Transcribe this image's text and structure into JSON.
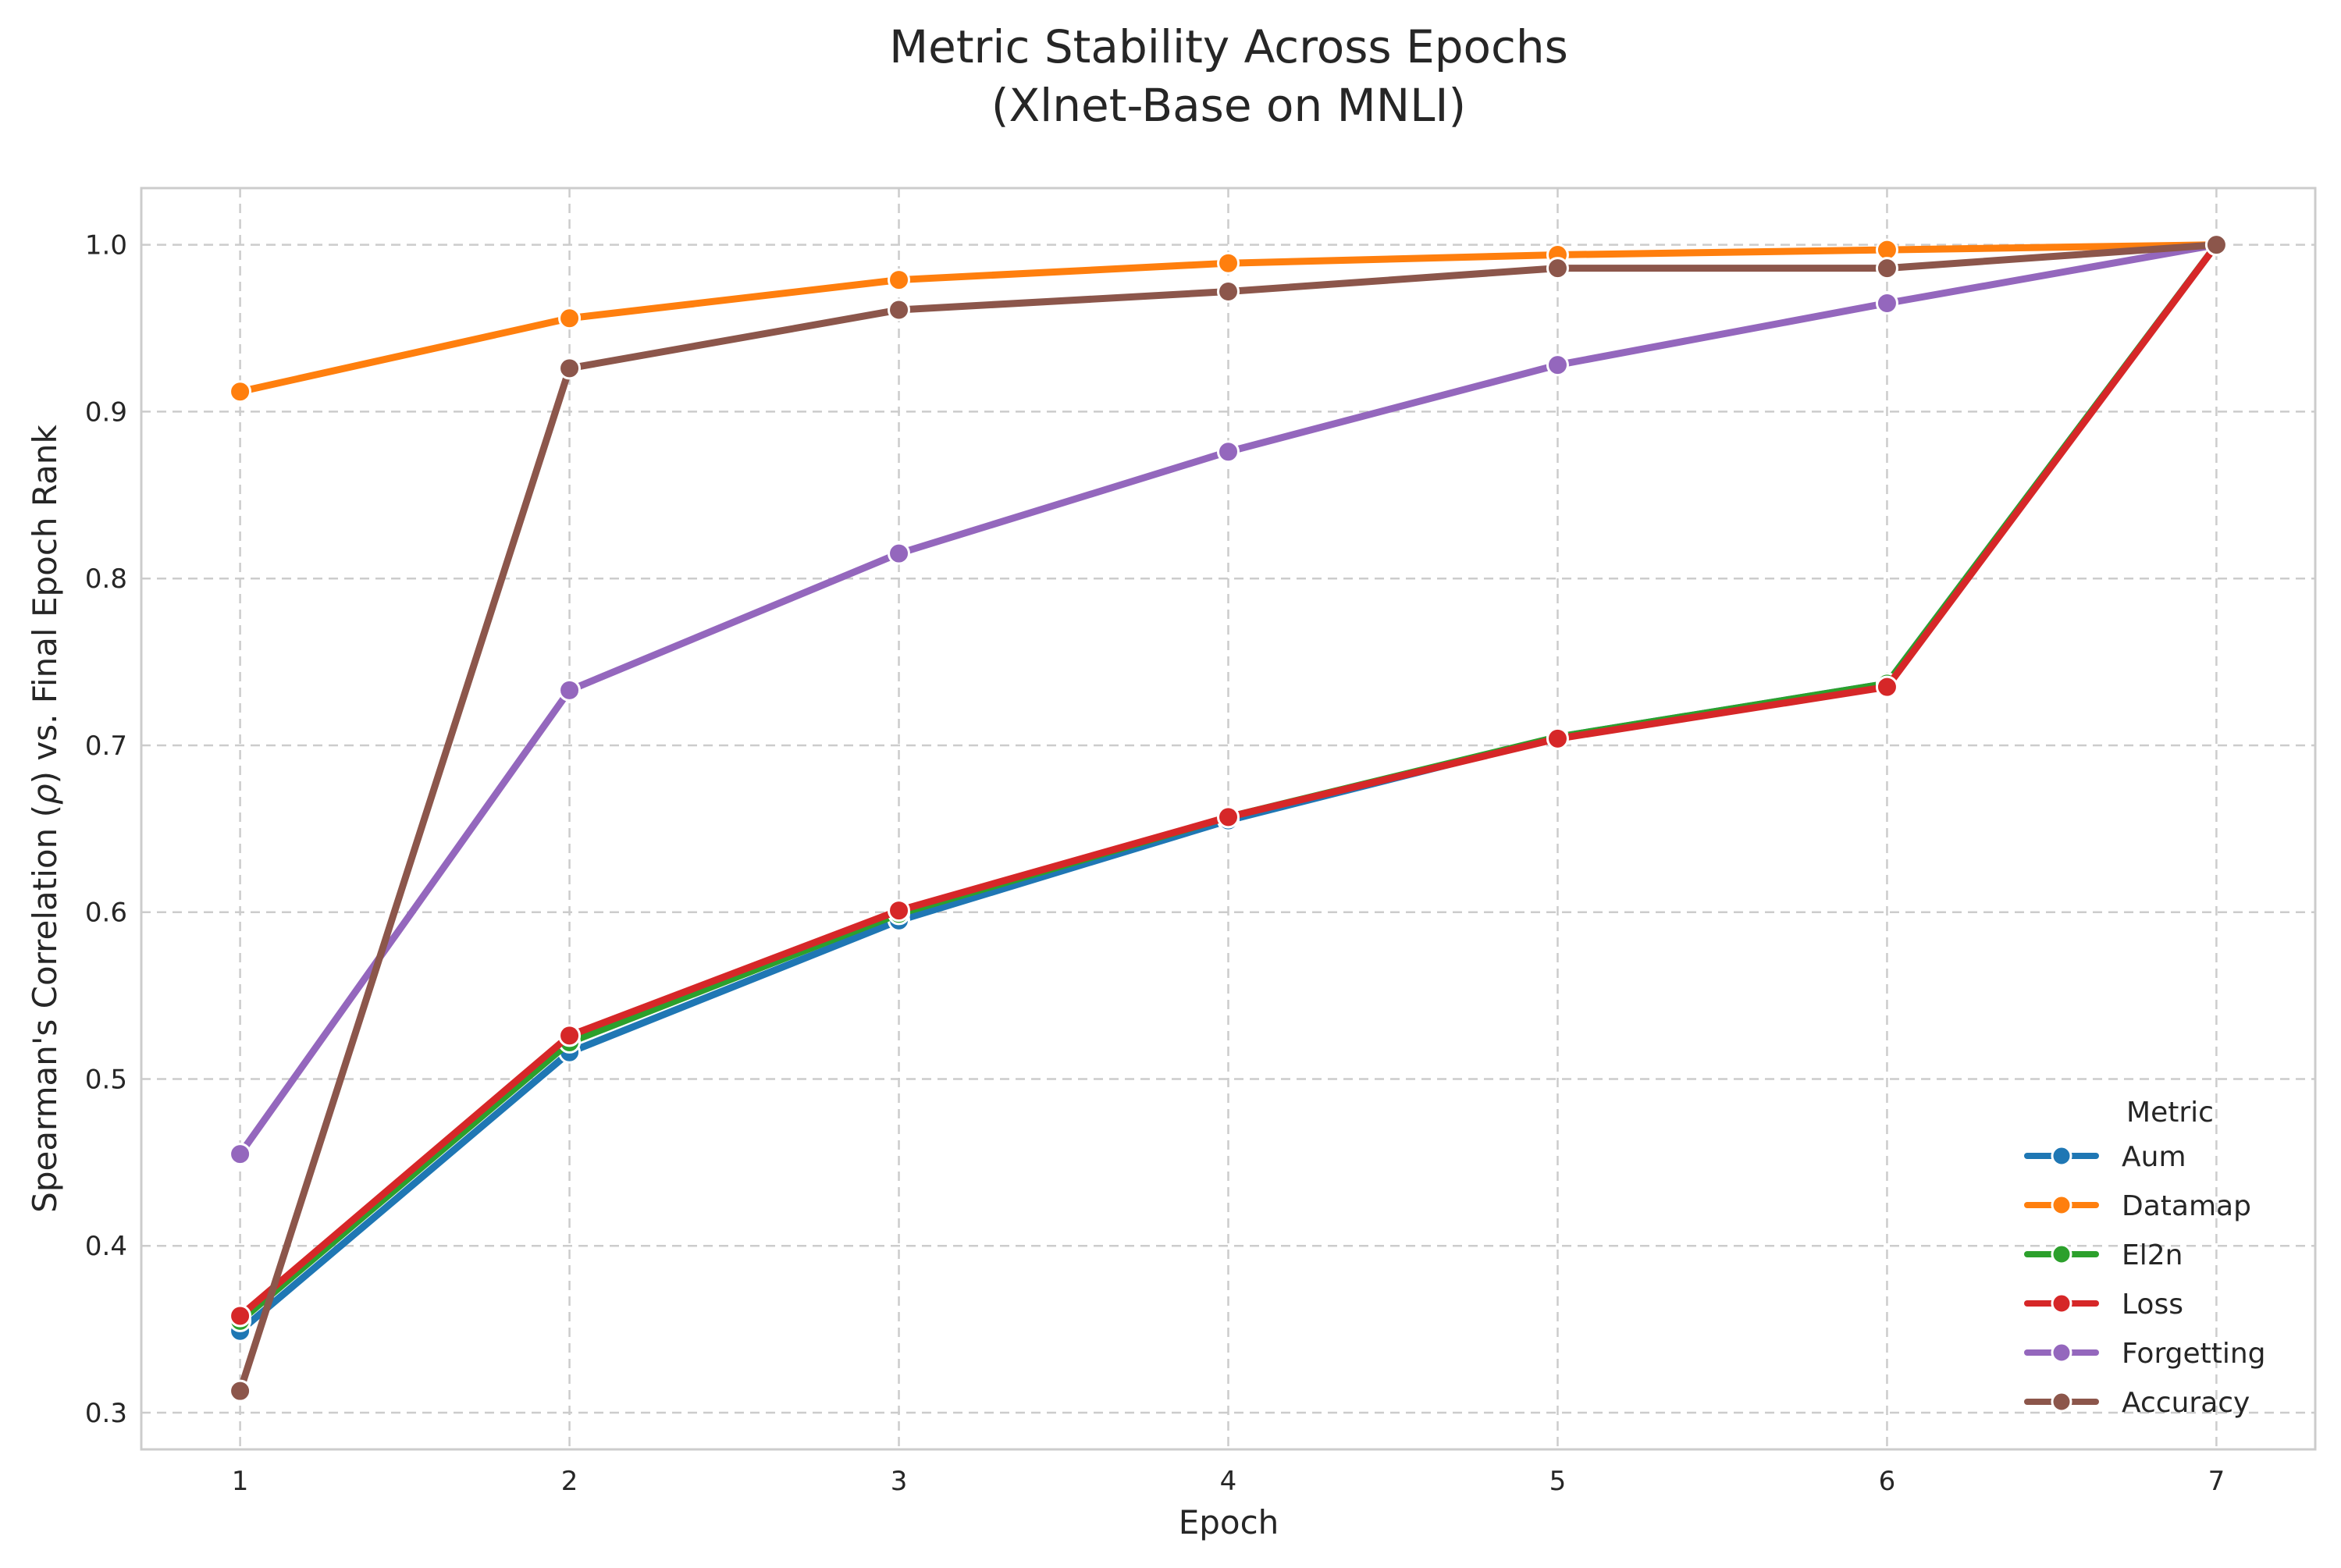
{
  "chart_data": {
    "type": "line",
    "title": "Metric Stability Across Epochs",
    "subtitle": "(Xlnet-Base on MNLI)",
    "xlabel": "Epoch",
    "ylabel_prefix": "Spearman's Correlation (",
    "ylabel_symbol": "ρ",
    "ylabel_suffix": ") vs. Final Epoch Rank",
    "x": [
      1,
      2,
      3,
      4,
      5,
      6,
      7
    ],
    "xlim": [
      0.7,
      7.3
    ],
    "ylim": [
      0.278,
      1.034
    ],
    "yticks": [
      0.3,
      0.4,
      0.5,
      0.6,
      0.7,
      0.8,
      0.9,
      1.0
    ],
    "ytick_labels": [
      "0.3",
      "0.4",
      "0.5",
      "0.6",
      "0.7",
      "0.8",
      "0.9",
      "1.0"
    ],
    "xtick_labels": [
      "1",
      "2",
      "3",
      "4",
      "5",
      "6",
      "7"
    ],
    "grid": true,
    "legend": {
      "title": "Metric",
      "position": "bottom-right"
    },
    "series": [
      {
        "name": "Aum",
        "color": "#1f77b4",
        "values": [
          0.349,
          0.516,
          0.595,
          0.655,
          0.705,
          0.737,
          1.0
        ]
      },
      {
        "name": "Datamap",
        "color": "#ff7f0e",
        "values": [
          0.912,
          0.956,
          0.979,
          0.989,
          0.994,
          0.997,
          1.0
        ]
      },
      {
        "name": "El2n",
        "color": "#2ca02c",
        "values": [
          0.355,
          0.522,
          0.599,
          0.657,
          0.705,
          0.737,
          1.0
        ]
      },
      {
        "name": "Loss",
        "color": "#d62728",
        "values": [
          0.358,
          0.526,
          0.601,
          0.657,
          0.704,
          0.735,
          1.0
        ]
      },
      {
        "name": "Forgetting",
        "color": "#9467bd",
        "values": [
          0.455,
          0.733,
          0.815,
          0.876,
          0.928,
          0.965,
          1.0
        ]
      },
      {
        "name": "Accuracy",
        "color": "#8c564b",
        "values": [
          0.313,
          0.926,
          0.961,
          0.972,
          0.986,
          0.986,
          1.0
        ]
      }
    ]
  }
}
